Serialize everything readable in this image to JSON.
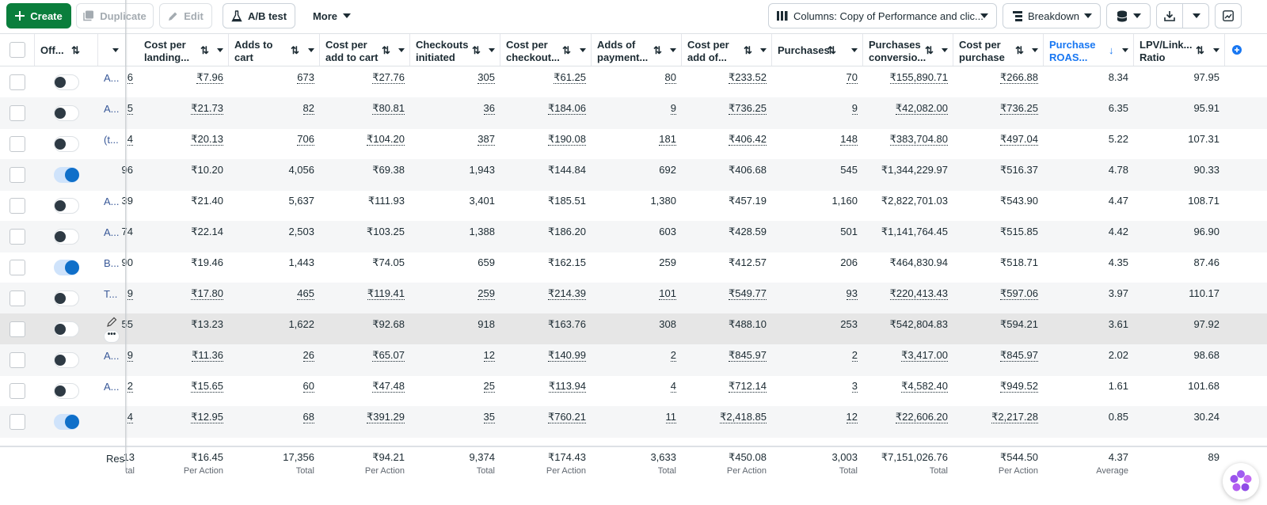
{
  "toolbar": {
    "create": "Create",
    "duplicate": "Duplicate",
    "edit": "Edit",
    "ab_test": "A/B test",
    "more": "More",
    "columns": "Columns: Copy of Performance and clic...",
    "breakdown": "Breakdown"
  },
  "header": {
    "off_on": "Off...",
    "columns": [
      {
        "l1": "Cost per",
        "l2": "landing..."
      },
      {
        "l1": "Adds to",
        "l2": "cart"
      },
      {
        "l1": "Cost per",
        "l2": "add to cart"
      },
      {
        "l1": "Checkouts",
        "l2": "initiated"
      },
      {
        "l1": "Cost per",
        "l2": "checkout..."
      },
      {
        "l1": "Adds of",
        "l2": "payment..."
      },
      {
        "l1": "Cost per",
        "l2": "add of..."
      },
      {
        "l1": "Purchases",
        "l2": ""
      },
      {
        "l1": "Purchases",
        "l2": "conversio..."
      },
      {
        "l1": "Cost per",
        "l2": "purchase"
      },
      {
        "l1": "Purchase",
        "l2": "ROAS..."
      },
      {
        "l1": "LPV/Link...",
        "l2": "Ratio"
      }
    ]
  },
  "rows": [
    {
      "name": "A...",
      "partial": "6",
      "on": false,
      "vals": [
        "₹7.96",
        "673",
        "₹27.76",
        "305",
        "₹61.25",
        "80",
        "₹233.52",
        "70",
        "₹155,890.71",
        "₹266.88",
        "8.34",
        "97.95"
      ]
    },
    {
      "name": "A...",
      "partial": "5",
      "on": false,
      "vals": [
        "₹21.73",
        "82",
        "₹80.81",
        "36",
        "₹184.06",
        "9",
        "₹736.25",
        "9",
        "₹42,082.00",
        "₹736.25",
        "6.35",
        "95.91"
      ]
    },
    {
      "name": "(t...",
      "partial": "4",
      "on": false,
      "vals": [
        "₹20.13",
        "706",
        "₹104.20",
        "387",
        "₹190.08",
        "181",
        "₹406.42",
        "148",
        "₹383,704.80",
        "₹497.04",
        "5.22",
        "107.31"
      ]
    },
    {
      "name": "",
      "partial": "96",
      "on": true,
      "vals": [
        "₹10.20",
        "4,056",
        "₹69.38",
        "1,943",
        "₹144.84",
        "692",
        "₹406.68",
        "545",
        "₹1,344,229.97",
        "₹516.37",
        "4.78",
        "90.33"
      ]
    },
    {
      "name": "A...",
      "partial": "39",
      "on": false,
      "vals": [
        "₹21.40",
        "5,637",
        "₹111.93",
        "3,401",
        "₹185.51",
        "1,380",
        "₹457.19",
        "1,160",
        "₹2,822,701.03",
        "₹543.90",
        "4.47",
        "108.71"
      ]
    },
    {
      "name": "A...",
      "partial": "74",
      "on": false,
      "vals": [
        "₹22.14",
        "2,503",
        "₹103.25",
        "1,388",
        "₹186.20",
        "603",
        "₹428.59",
        "501",
        "₹1,141,764.45",
        "₹515.85",
        "4.42",
        "96.90"
      ]
    },
    {
      "name": "B...",
      "partial": "90",
      "on": true,
      "vals": [
        "₹19.46",
        "1,443",
        "₹74.05",
        "659",
        "₹162.15",
        "259",
        "₹412.57",
        "206",
        "₹464,830.94",
        "₹518.71",
        "4.35",
        "87.46"
      ]
    },
    {
      "name": "T...",
      "partial": "9",
      "on": false,
      "vals": [
        "₹17.80",
        "465",
        "₹119.41",
        "259",
        "₹214.39",
        "101",
        "₹549.77",
        "93",
        "₹220,413.43",
        "₹597.06",
        "3.97",
        "110.17"
      ]
    },
    {
      "name": "",
      "partial": "55",
      "on": false,
      "vals": [
        "₹13.23",
        "1,622",
        "₹92.68",
        "918",
        "₹163.76",
        "308",
        "₹488.10",
        "253",
        "₹542,804.83",
        "₹594.21",
        "3.61",
        "97.92"
      ]
    },
    {
      "name": "A...",
      "partial": "9",
      "on": false,
      "vals": [
        "₹11.36",
        "26",
        "₹65.07",
        "12",
        "₹140.99",
        "2",
        "₹845.97",
        "2",
        "₹3,417.00",
        "₹845.97",
        "2.02",
        "98.68"
      ]
    },
    {
      "name": "A...",
      "partial": "2",
      "on": false,
      "vals": [
        "₹15.65",
        "60",
        "₹47.48",
        "25",
        "₹113.94",
        "4",
        "₹712.14",
        "3",
        "₹4,582.40",
        "₹949.52",
        "1.61",
        "101.68"
      ]
    },
    {
      "name": "",
      "partial": "4",
      "on": true,
      "vals": [
        "₹12.95",
        "68",
        "₹391.29",
        "35",
        "₹760.21",
        "11",
        "₹2,418.85",
        "12",
        "₹22,606.20",
        "₹2,217.28",
        "0.85",
        "30.24"
      ]
    }
  ],
  "footer": {
    "results": "Res",
    "partial": "13",
    "partial_sub": "tal",
    "vals": [
      "₹16.45",
      "17,356",
      "₹94.21",
      "9,374",
      "₹174.43",
      "3,633",
      "₹450.08",
      "3,003",
      "₹7,151,026.76",
      "₹544.50",
      "4.37",
      "89"
    ],
    "subs": [
      "Per Action",
      "Total",
      "Per Action",
      "Total",
      "Per Action",
      "Total",
      "Per Action",
      "Total",
      "Total",
      "Per Action",
      "Average",
      ""
    ]
  }
}
